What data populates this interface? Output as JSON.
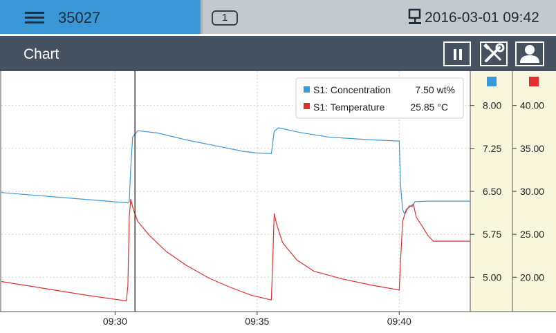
{
  "header": {
    "device_id": "35027",
    "page_badge": "1",
    "datetime": "2016-03-01 09:42"
  },
  "titlebar": {
    "title": "Chart",
    "buttons": [
      {
        "name": "pause",
        "icon": "pause-icon"
      },
      {
        "name": "tools",
        "icon": "tools-icon"
      },
      {
        "name": "user",
        "icon": "user-icon"
      }
    ]
  },
  "legend": {
    "items": [
      {
        "label": "S1: Concentration",
        "value": "7.50 wt%",
        "color": "#3a98d6"
      },
      {
        "label": "S1: Temperature",
        "value": "25.85 °C",
        "color": "#e03030"
      }
    ]
  },
  "colors": {
    "concentration": "#3a98d6",
    "temperature": "#e03030",
    "axis_panel": "#f8f6dd",
    "header_blue": "#3a98d6",
    "titlebar": "#465260"
  },
  "chart_data": {
    "type": "line",
    "x_ticks": [
      "09:30",
      "09:35",
      "09:40"
    ],
    "x_range_minutes": [
      26,
      42.5
    ],
    "cursor_time_minutes": 30.7,
    "axes": [
      {
        "name": "concentration",
        "unit": "wt%",
        "ticks": [
          "8.00",
          "7.25",
          "6.50",
          "5.75",
          "5.00"
        ],
        "range": [
          4.4,
          8.6
        ]
      },
      {
        "name": "temperature",
        "unit": "°C",
        "ticks": [
          "40.00",
          "35.00",
          "30.00",
          "25.00",
          "20.00"
        ],
        "range": [
          16.0,
          44.0
        ]
      }
    ],
    "grid": true,
    "series": [
      {
        "name": "S1: Concentration",
        "axis": 0,
        "points": [
          [
            26.0,
            6.48
          ],
          [
            30.45,
            6.3
          ],
          [
            30.5,
            6.32
          ],
          [
            30.55,
            6.9
          ],
          [
            30.62,
            7.45
          ],
          [
            30.8,
            7.56
          ],
          [
            31.5,
            7.52
          ],
          [
            32.5,
            7.4
          ],
          [
            33.5,
            7.3
          ],
          [
            34.5,
            7.2
          ],
          [
            35.0,
            7.17
          ],
          [
            35.5,
            7.16
          ],
          [
            35.55,
            7.35
          ],
          [
            35.6,
            7.55
          ],
          [
            35.75,
            7.61
          ],
          [
            36.5,
            7.53
          ],
          [
            37.5,
            7.45
          ],
          [
            39.0,
            7.4
          ],
          [
            40.0,
            7.38
          ],
          [
            40.05,
            6.6
          ],
          [
            40.12,
            6.18
          ],
          [
            40.2,
            6.1
          ],
          [
            40.35,
            6.25
          ],
          [
            40.45,
            6.23
          ],
          [
            40.55,
            6.32
          ],
          [
            41.0,
            6.33
          ],
          [
            42.5,
            6.33
          ]
        ]
      },
      {
        "name": "S1: Temperature",
        "axis": 1,
        "points": [
          [
            26.0,
            19.5
          ],
          [
            27.5,
            18.7
          ],
          [
            29.0,
            17.9
          ],
          [
            30.4,
            17.25
          ],
          [
            30.45,
            19.0
          ],
          [
            30.5,
            27.0
          ],
          [
            30.55,
            29.1
          ],
          [
            30.65,
            27.8
          ],
          [
            30.8,
            26.5
          ],
          [
            31.2,
            24.9
          ],
          [
            31.8,
            23.0
          ],
          [
            32.5,
            21.4
          ],
          [
            33.3,
            19.9
          ],
          [
            34.0,
            18.9
          ],
          [
            34.8,
            17.9
          ],
          [
            35.5,
            17.35
          ],
          [
            35.55,
            22.0
          ],
          [
            35.6,
            27.4
          ],
          [
            35.7,
            26.0
          ],
          [
            35.9,
            24.0
          ],
          [
            36.4,
            22.0
          ],
          [
            37.0,
            20.7
          ],
          [
            38.0,
            19.8
          ],
          [
            39.0,
            19.1
          ],
          [
            40.0,
            18.5
          ],
          [
            40.05,
            22.0
          ],
          [
            40.12,
            26.5
          ],
          [
            40.25,
            27.9
          ],
          [
            40.45,
            28.4
          ],
          [
            40.5,
            28.5
          ],
          [
            40.6,
            27.0
          ],
          [
            40.8,
            26.0
          ],
          [
            41.0,
            24.9
          ],
          [
            41.2,
            24.2
          ],
          [
            41.7,
            24.2
          ],
          [
            42.5,
            24.2
          ]
        ]
      }
    ]
  }
}
